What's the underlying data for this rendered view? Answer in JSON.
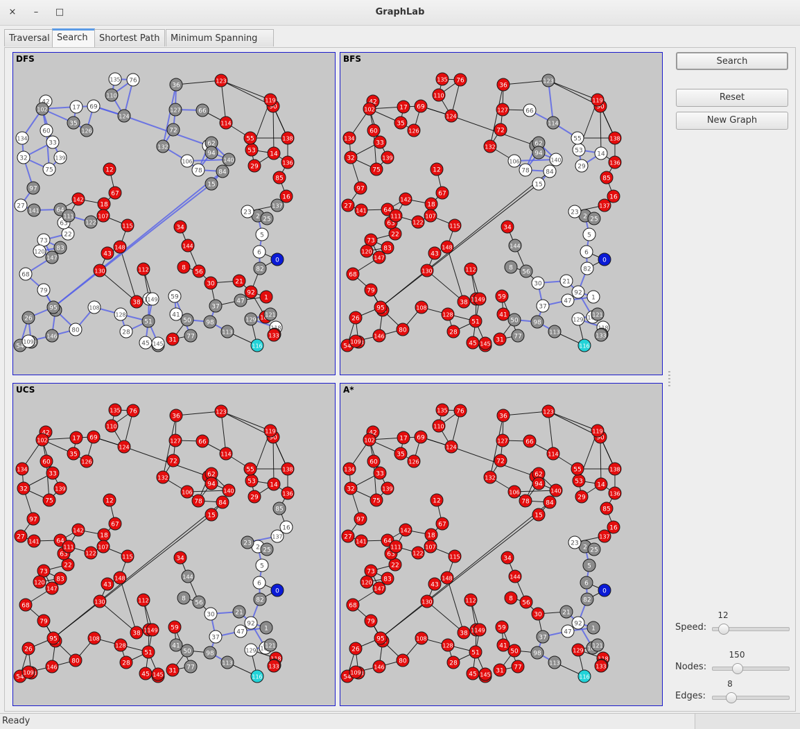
{
  "window": {
    "title": "GraphLab",
    "close": "×",
    "minimize": "–",
    "maximize": "□"
  },
  "tabs": [
    "Traversal",
    "Search",
    "Shortest Path",
    "Minimum Spanning Tree"
  ],
  "active_tab": "Search",
  "panels": [
    {
      "label": "DFS"
    },
    {
      "label": "BFS"
    },
    {
      "label": "UCS"
    },
    {
      "label": "A*"
    }
  ],
  "buttons": {
    "search": "Search",
    "reset": "Reset",
    "new_graph": "New Graph"
  },
  "sliders": {
    "speed": {
      "label": "Speed:",
      "value": "12"
    },
    "nodes": {
      "label": "Nodes:",
      "value": "150"
    },
    "edges": {
      "label": "Edges:",
      "value": "8"
    }
  },
  "status": "Ready",
  "colors": {
    "visited": "#e30d0d",
    "frontier": "#8c8c8c",
    "unvisited": "#ffffff",
    "start": "#0a1ad6",
    "goal": "#22d3d8",
    "panel_bg": "#c8c8c8",
    "panel_border": "#1a1acc"
  },
  "graph": {
    "nodes": [
      [
        "0",
        399,
        376
      ],
      [
        "1",
        383,
        430
      ],
      [
        "2",
        371,
        313
      ],
      [
        "4",
        300,
        212
      ],
      [
        "5",
        377,
        340
      ],
      [
        "6",
        373,
        365
      ],
      [
        "8",
        264,
        387
      ],
      [
        "12",
        157,
        246
      ],
      [
        "14",
        394,
        223
      ],
      [
        "15",
        304,
        267
      ],
      [
        "16",
        412,
        285
      ],
      [
        "17",
        109,
        156
      ],
      [
        "18",
        149,
        296
      ],
      [
        "21",
        344,
        407
      ],
      [
        "22",
        97,
        339
      ],
      [
        "23",
        356,
        307
      ],
      [
        "25",
        384,
        317
      ],
      [
        "26",
        40,
        460
      ],
      [
        "27",
        29,
        298
      ],
      [
        "28",
        181,
        480
      ],
      [
        "29",
        366,
        241
      ],
      [
        "30",
        303,
        410
      ],
      [
        "31",
        248,
        491
      ],
      [
        "32",
        33,
        229
      ],
      [
        "33",
        75,
        207
      ],
      [
        "34",
        259,
        329
      ],
      [
        "35",
        105,
        179
      ],
      [
        "36",
        253,
        124
      ],
      [
        "37",
        310,
        443
      ],
      [
        "38",
        196,
        437
      ],
      [
        "41",
        253,
        455
      ],
      [
        "42",
        65,
        148
      ],
      [
        "43",
        154,
        367
      ],
      [
        "45",
        209,
        496
      ],
      [
        "47",
        346,
        435
      ],
      [
        "50",
        269,
        463
      ],
      [
        "51",
        213,
        465
      ],
      [
        "53",
        362,
        218
      ],
      [
        "54",
        28,
        500
      ],
      [
        "55",
        360,
        201
      ],
      [
        "56",
        286,
        393
      ],
      [
        "59",
        251,
        429
      ],
      [
        "60",
        66,
        190
      ],
      [
        "62",
        304,
        208
      ],
      [
        "63",
        91,
        323
      ],
      [
        "64",
        86,
        304
      ],
      [
        "66",
        291,
        161
      ],
      [
        "67",
        165,
        280
      ],
      [
        "68",
        36,
        397
      ],
      [
        "69",
        134,
        155
      ],
      [
        "72",
        249,
        189
      ],
      [
        "73",
        62,
        348
      ],
      [
        "75",
        70,
        246
      ],
      [
        "76",
        191,
        117
      ],
      [
        "77",
        274,
        486
      ],
      [
        "78",
        285,
        247
      ],
      [
        "79",
        62,
        420
      ],
      [
        "80",
        108,
        477
      ],
      [
        "82",
        374,
        389
      ],
      [
        "83",
        86,
        359
      ],
      [
        "84",
        320,
        249
      ],
      [
        "85",
        402,
        258
      ],
      [
        "90",
        393,
        155
      ],
      [
        "92",
        361,
        423
      ],
      [
        "93",
        79,
        449
      ],
      [
        "94",
        304,
        222
      ],
      [
        "95",
        76,
        445
      ],
      [
        "97",
        47,
        273
      ],
      [
        "98",
        302,
        466
      ],
      [
        "101",
        382,
        459
      ],
      [
        "102",
        60,
        159
      ],
      [
        "103",
        44,
        495
      ],
      [
        "106",
        269,
        234
      ],
      [
        "107",
        148,
        313
      ],
      [
        "108",
        135,
        445
      ],
      [
        "109",
        40,
        494
      ],
      [
        "110",
        160,
        139
      ],
      [
        "111",
        98,
        313
      ],
      [
        "112",
        206,
        390
      ],
      [
        "113",
        327,
        480
      ],
      [
        "114",
        325,
        179
      ],
      [
        "115",
        183,
        327
      ],
      [
        "116",
        370,
        500
      ],
      [
        "118",
        397,
        474
      ],
      [
        "119",
        389,
        146
      ],
      [
        "120",
        56,
        364
      ],
      [
        "121",
        389,
        455
      ],
      [
        "122",
        130,
        322
      ],
      [
        "123",
        318,
        118
      ],
      [
        "124",
        178,
        169
      ],
      [
        "125",
        395,
        484
      ],
      [
        "126",
        124,
        190
      ],
      [
        "127",
        252,
        160
      ],
      [
        "128",
        173,
        455
      ],
      [
        "129",
        361,
        462
      ],
      [
        "130",
        143,
        392
      ],
      [
        "131",
        227,
        500
      ],
      [
        "132",
        234,
        213
      ],
      [
        "133",
        394,
        485
      ],
      [
        "134",
        31,
        201
      ],
      [
        "135",
        165,
        116
      ],
      [
        "136",
        414,
        236
      ],
      [
        "137",
        399,
        298
      ],
      [
        "138",
        414,
        201
      ],
      [
        "139",
        86,
        229
      ],
      [
        "140",
        329,
        232
      ],
      [
        "141",
        48,
        305
      ],
      [
        "142",
        112,
        289
      ],
      [
        "143",
        214,
        433
      ],
      [
        "144",
        270,
        356
      ],
      [
        "145",
        227,
        497
      ],
      [
        "146",
        74,
        486
      ],
      [
        "147",
        74,
        373
      ],
      [
        "148",
        172,
        358
      ],
      [
        "149",
        219,
        433
      ]
    ],
    "dfs_unvisited": [
      "102",
      "17",
      "35",
      "126",
      "42",
      "60",
      "33",
      "134",
      "32",
      "139",
      "75",
      "97",
      "27",
      "141",
      "64",
      "111",
      "122",
      "63",
      "22",
      "73",
      "83",
      "120",
      "147",
      "68",
      "79",
      "95",
      "93",
      "26",
      "80",
      "54",
      "103",
      "109",
      "146",
      "108",
      "128",
      "28",
      "131",
      "145",
      "45",
      "51",
      "50",
      "77",
      "98",
      "113",
      "37",
      "59",
      "41",
      "143",
      "149",
      "110",
      "135",
      "76",
      "124",
      "69",
      "36",
      "127",
      "132",
      "72",
      "66",
      "106",
      "78",
      "94",
      "15",
      "84",
      "140",
      "62",
      "4",
      "23",
      "25",
      "2",
      "5",
      "6",
      "82",
      "121",
      "129",
      "118"
    ],
    "dfs_frontier": [
      "102",
      "35",
      "126",
      "97",
      "141",
      "64",
      "111",
      "122",
      "147",
      "83",
      "93",
      "26",
      "146",
      "103",
      "54",
      "95",
      "131",
      "51",
      "50",
      "77",
      "98",
      "37",
      "110",
      "124",
      "36",
      "127",
      "72",
      "66",
      "132",
      "94",
      "15",
      "140",
      "62",
      "84",
      "25",
      "2",
      "137",
      "82",
      "121",
      "129",
      "113",
      "47"
    ],
    "bfs_unvisited": [
      "123",
      "66",
      "114",
      "55",
      "53",
      "14",
      "29",
      "140",
      "94",
      "84",
      "15",
      "106",
      "78",
      "62",
      "4",
      "23",
      "25",
      "2",
      "5",
      "6",
      "82",
      "92",
      "1",
      "101",
      "129",
      "121",
      "47",
      "37",
      "30",
      "21",
      "98",
      "113",
      "50",
      "77",
      "118",
      "125",
      "133"
    ],
    "bfs_frontier": [
      "123",
      "114",
      "94",
      "62",
      "4",
      "25",
      "2",
      "50",
      "77",
      "98",
      "113",
      "121",
      "125",
      "133",
      "8",
      "56",
      "144"
    ],
    "ucs_unvisited": [
      "16",
      "137",
      "25",
      "23",
      "2",
      "5",
      "6",
      "82",
      "92",
      "1",
      "101",
      "21",
      "30",
      "47",
      "37",
      "98",
      "113",
      "121",
      "129"
    ],
    "ucs_frontier": [
      "85",
      "82",
      "1",
      "98",
      "113",
      "121",
      "41",
      "50",
      "77",
      "8",
      "56",
      "144",
      "21",
      "23",
      "25"
    ],
    "astar_unvisited": [
      "25",
      "23",
      "2",
      "5",
      "6",
      "82",
      "92",
      "1",
      "101",
      "47",
      "37",
      "21",
      "98",
      "113",
      "121"
    ],
    "astar_frontier": [
      "25",
      "2",
      "5",
      "6",
      "82",
      "1",
      "101",
      "121",
      "37",
      "21",
      "98",
      "113"
    ],
    "edges": [
      [
        "102",
        "17"
      ],
      [
        "102",
        "35"
      ],
      [
        "102",
        "42"
      ],
      [
        "102",
        "60"
      ],
      [
        "102",
        "134"
      ],
      [
        "102",
        "33"
      ],
      [
        "17",
        "69"
      ],
      [
        "17",
        "35"
      ],
      [
        "35",
        "126"
      ],
      [
        "69",
        "126"
      ],
      [
        "69",
        "124"
      ],
      [
        "110",
        "135"
      ],
      [
        "135",
        "76"
      ],
      [
        "110",
        "76"
      ],
      [
        "110",
        "124"
      ],
      [
        "124",
        "76"
      ],
      [
        "124",
        "69"
      ],
      [
        "124",
        "4"
      ],
      [
        "134",
        "32"
      ],
      [
        "32",
        "75"
      ],
      [
        "32",
        "33"
      ],
      [
        "33",
        "60"
      ],
      [
        "60",
        "75"
      ],
      [
        "75",
        "139"
      ],
      [
        "139",
        "33"
      ],
      [
        "32",
        "97"
      ],
      [
        "97",
        "27"
      ],
      [
        "27",
        "141"
      ],
      [
        "141",
        "64"
      ],
      [
        "64",
        "111"
      ],
      [
        "111",
        "122"
      ],
      [
        "111",
        "63"
      ],
      [
        "63",
        "22"
      ],
      [
        "22",
        "73"
      ],
      [
        "73",
        "83"
      ],
      [
        "83",
        "120"
      ],
      [
        "120",
        "147"
      ],
      [
        "147",
        "73"
      ],
      [
        "147",
        "68"
      ],
      [
        "68",
        "79"
      ],
      [
        "79",
        "95"
      ],
      [
        "79",
        "93"
      ],
      [
        "95",
        "26"
      ],
      [
        "95",
        "93"
      ],
      [
        "93",
        "80"
      ],
      [
        "26",
        "54"
      ],
      [
        "26",
        "103"
      ],
      [
        "103",
        "109"
      ],
      [
        "109",
        "146"
      ],
      [
        "146",
        "93"
      ],
      [
        "146",
        "80"
      ],
      [
        "54",
        "103"
      ],
      [
        "142",
        "18"
      ],
      [
        "142",
        "111"
      ],
      [
        "142",
        "64"
      ],
      [
        "18",
        "107"
      ],
      [
        "107",
        "122"
      ],
      [
        "107",
        "115"
      ],
      [
        "18",
        "67"
      ],
      [
        "67",
        "12"
      ],
      [
        "115",
        "148"
      ],
      [
        "148",
        "43"
      ],
      [
        "43",
        "130"
      ],
      [
        "130",
        "38"
      ],
      [
        "38",
        "148"
      ],
      [
        "38",
        "52"
      ],
      [
        "52",
        "112"
      ],
      [
        "148",
        "39"
      ],
      [
        "39",
        "112"
      ],
      [
        "112",
        "149"
      ],
      [
        "112",
        "143"
      ],
      [
        "149",
        "51"
      ],
      [
        "143",
        "51"
      ],
      [
        "51",
        "45"
      ],
      [
        "51",
        "145"
      ],
      [
        "45",
        "131"
      ],
      [
        "131",
        "145"
      ],
      [
        "128",
        "51"
      ],
      [
        "128",
        "108"
      ],
      [
        "108",
        "80"
      ],
      [
        "128",
        "28"
      ],
      [
        "28",
        "51"
      ],
      [
        "36",
        "127"
      ],
      [
        "127",
        "72"
      ],
      [
        "72",
        "132"
      ],
      [
        "132",
        "36"
      ],
      [
        "127",
        "66"
      ],
      [
        "66",
        "114"
      ],
      [
        "114",
        "123"
      ],
      [
        "123",
        "36"
      ],
      [
        "123",
        "119"
      ],
      [
        "119",
        "90"
      ],
      [
        "90",
        "138"
      ],
      [
        "138",
        "136"
      ],
      [
        "136",
        "85"
      ],
      [
        "85",
        "16"
      ],
      [
        "16",
        "137"
      ],
      [
        "137",
        "23"
      ],
      [
        "23",
        "25"
      ],
      [
        "25",
        "2"
      ],
      [
        "2",
        "5"
      ],
      [
        "5",
        "6"
      ],
      [
        "6",
        "82"
      ],
      [
        "82",
        "0"
      ],
      [
        "0",
        "6"
      ],
      [
        "82",
        "92"
      ],
      [
        "92",
        "1"
      ],
      [
        "92",
        "101"
      ],
      [
        "101",
        "121"
      ],
      [
        "121",
        "129"
      ],
      [
        "129",
        "118"
      ],
      [
        "118",
        "133"
      ],
      [
        "133",
        "125"
      ],
      [
        "116",
        "129"
      ],
      [
        "116",
        "113"
      ],
      [
        "113",
        "98"
      ],
      [
        "98",
        "37"
      ],
      [
        "37",
        "30"
      ],
      [
        "30",
        "21"
      ],
      [
        "21",
        "92"
      ],
      [
        "30",
        "56"
      ],
      [
        "56",
        "8"
      ],
      [
        "56",
        "144"
      ],
      [
        "144",
        "34"
      ],
      [
        "37",
        "47"
      ],
      [
        "47",
        "1"
      ],
      [
        "98",
        "50"
      ],
      [
        "50",
        "41"
      ],
      [
        "41",
        "59"
      ],
      [
        "59",
        "77"
      ],
      [
        "77",
        "31"
      ],
      [
        "31",
        "50"
      ],
      [
        "132",
        "106"
      ],
      [
        "106",
        "140"
      ],
      [
        "140",
        "94"
      ],
      [
        "94",
        "78"
      ],
      [
        "78",
        "84"
      ],
      [
        "84",
        "15"
      ],
      [
        "15",
        "95"
      ],
      [
        "62",
        "4"
      ],
      [
        "4",
        "78"
      ],
      [
        "62",
        "140"
      ],
      [
        "106",
        "78"
      ],
      [
        "114",
        "55"
      ],
      [
        "55",
        "53"
      ],
      [
        "53",
        "14"
      ],
      [
        "14",
        "29"
      ],
      [
        "29",
        "53"
      ],
      [
        "55",
        "138"
      ],
      [
        "136",
        "14"
      ],
      [
        "84",
        "95"
      ],
      [
        "119",
        "138"
      ],
      [
        "90",
        "14"
      ],
      [
        "119",
        "53"
      ],
      [
        "123",
        "90"
      ]
    ]
  }
}
